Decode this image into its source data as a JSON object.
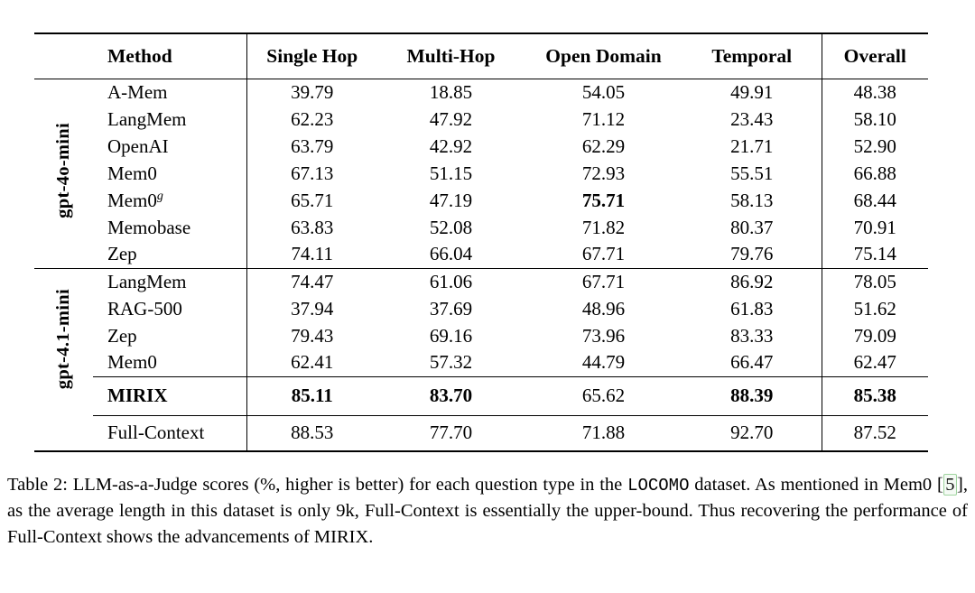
{
  "colors": {
    "text": "#000000",
    "rule": "#000000",
    "citation_border": "#9fd49f",
    "citation_background": "#f4faf4"
  },
  "table": {
    "headers": [
      {
        "label": "Method"
      },
      {
        "label": "Single Hop"
      },
      {
        "label": "Multi-Hop"
      },
      {
        "label": "Open Domain"
      },
      {
        "label": "Temporal"
      },
      {
        "label": "Overall"
      }
    ],
    "groups": [
      {
        "label": "gpt-4o-mini",
        "rows": [
          {
            "method": "A-Mem",
            "values": [
              "39.79",
              "18.85",
              "54.05",
              "49.91",
              "48.38"
            ],
            "bold": [
              false,
              false,
              false,
              false,
              false
            ]
          },
          {
            "method": "LangMem",
            "values": [
              "62.23",
              "47.92",
              "71.12",
              "23.43",
              "58.10"
            ],
            "bold": [
              false,
              false,
              false,
              false,
              false
            ]
          },
          {
            "method": "OpenAI",
            "values": [
              "63.79",
              "42.92",
              "62.29",
              "21.71",
              "52.90"
            ],
            "bold": [
              false,
              false,
              false,
              false,
              false
            ]
          },
          {
            "method": "Mem0",
            "values": [
              "67.13",
              "51.15",
              "72.93",
              "55.51",
              "66.88"
            ],
            "bold": [
              false,
              false,
              false,
              false,
              false
            ]
          },
          {
            "method": "Mem0",
            "method_sup": "g",
            "values": [
              "65.71",
              "47.19",
              "75.71",
              "58.13",
              "68.44"
            ],
            "bold": [
              false,
              false,
              true,
              false,
              false
            ]
          },
          {
            "method": "Memobase",
            "values": [
              "63.83",
              "52.08",
              "71.82",
              "80.37",
              "70.91"
            ],
            "bold": [
              false,
              false,
              false,
              false,
              false
            ]
          },
          {
            "method": "Zep",
            "values": [
              "74.11",
              "66.04",
              "67.71",
              "79.76",
              "75.14"
            ],
            "bold": [
              false,
              false,
              false,
              false,
              false
            ]
          }
        ]
      },
      {
        "label": "gpt-4.1-mini",
        "rows": [
          {
            "method": "LangMem",
            "values": [
              "74.47",
              "61.06",
              "67.71",
              "86.92",
              "78.05"
            ],
            "bold": [
              false,
              false,
              false,
              false,
              false
            ]
          },
          {
            "method": "RAG-500",
            "values": [
              "37.94",
              "37.69",
              "48.96",
              "61.83",
              "51.62"
            ],
            "bold": [
              false,
              false,
              false,
              false,
              false
            ]
          },
          {
            "method": "Zep",
            "values": [
              "79.43",
              "69.16",
              "73.96",
              "83.33",
              "79.09"
            ],
            "bold": [
              false,
              false,
              false,
              false,
              false
            ]
          },
          {
            "method": "Mem0",
            "values": [
              "62.41",
              "57.32",
              "44.79",
              "66.47",
              "62.47"
            ],
            "bold": [
              false,
              false,
              false,
              false,
              false
            ]
          },
          {
            "method": "MIRIX",
            "method_bold": true,
            "separator_above": true,
            "values": [
              "85.11",
              "83.70",
              "65.62",
              "88.39",
              "85.38"
            ],
            "bold": [
              true,
              true,
              false,
              true,
              true
            ]
          }
        ]
      }
    ],
    "footer": {
      "method": "Full-Context",
      "values": [
        "88.53",
        "77.70",
        "71.88",
        "92.70",
        "87.52"
      ]
    }
  },
  "caption": {
    "segments": [
      {
        "text": "Table 2: LLM-as-a-Judge scores (%, higher is better) for each question type in the ",
        "style": "normal"
      },
      {
        "text": "LOCOMO",
        "style": "mono"
      },
      {
        "text": " dataset. As mentioned in Mem0 ",
        "style": "normal"
      },
      {
        "text": "[",
        "style": "normal"
      },
      {
        "text": "5",
        "style": "citation"
      },
      {
        "text": "]",
        "style": "normal"
      },
      {
        "text": ", as the average length in this dataset is only 9k, Full-Context is essentially the upper-bound.  Thus recovering the performance of Full-Context shows the advancements of MIRIX.",
        "style": "normal"
      }
    ]
  }
}
